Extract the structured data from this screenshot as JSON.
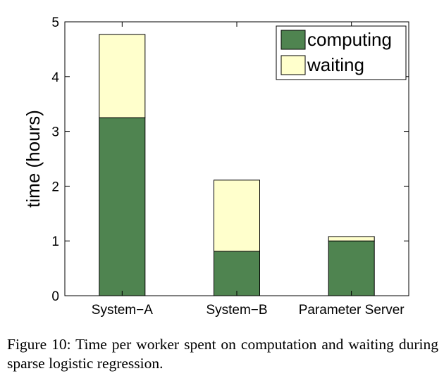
{
  "chart_data": {
    "type": "bar",
    "stacked": true,
    "categories": [
      "System−A",
      "System−B",
      "Parameter Server"
    ],
    "series": [
      {
        "name": "computing",
        "color": "#4f8450",
        "values": [
          3.25,
          0.81,
          1.0
        ]
      },
      {
        "name": "waiting",
        "color": "#ffffcc",
        "values": [
          1.52,
          1.3,
          0.08
        ]
      }
    ],
    "xlabel": "",
    "ylabel": "time (hours)",
    "ylim": [
      0,
      5
    ],
    "yticks": [
      0,
      1,
      2,
      3,
      4,
      5
    ],
    "grid": false,
    "legend_position": "top-right"
  },
  "caption": "Figure 10: Time per worker spent on computation and waiting during sparse logistic regression."
}
